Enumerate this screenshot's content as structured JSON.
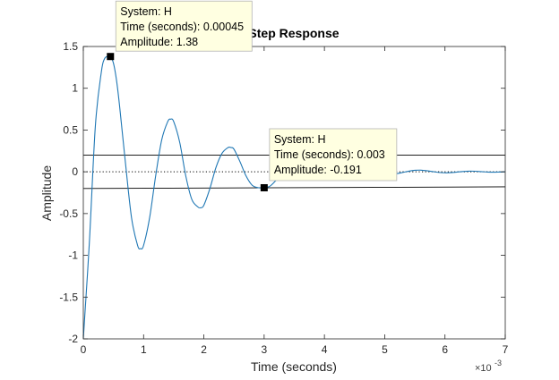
{
  "chart_data": {
    "type": "line",
    "title": "Step Response",
    "xlabel": "Time (seconds)",
    "ylabel": "Amplitude",
    "x_multiplier": "×10",
    "x_multiplier_exponent": "-3",
    "xlim": [
      0,
      0.007
    ],
    "ylim": [
      -2,
      1.5
    ],
    "x_ticks": [
      0,
      0.001,
      0.002,
      0.003,
      0.004,
      0.005,
      0.006,
      0.007
    ],
    "x_tick_labels": [
      "0",
      "1",
      "2",
      "3",
      "4",
      "5",
      "6",
      "7"
    ],
    "y_ticks": [
      -2,
      -1.5,
      -1,
      -0.5,
      0,
      0.5,
      1,
      1.5
    ],
    "y_tick_labels": [
      "-2",
      "-1.5",
      "-1",
      "-0.5",
      "0",
      "0.5",
      "1",
      "1.5"
    ],
    "grid": false,
    "colors": {
      "line": "#1f77b4",
      "tip_bg": "#ffffe1",
      "tip_border": "#b4b4b4",
      "dotted_ref": "#000000"
    },
    "series": [
      {
        "name": "H",
        "x": [
          0,
          0.0001,
          0.0002,
          0.0003,
          0.00035,
          0.0004,
          0.00045,
          0.0005,
          0.00055,
          0.0006,
          0.0007,
          0.0008,
          0.0009,
          0.00095,
          0.001,
          0.0011,
          0.0012,
          0.0013,
          0.0014,
          0.00145,
          0.0015,
          0.0016,
          0.0017,
          0.0018,
          0.0019,
          0.00195,
          0.002,
          0.0021,
          0.0022,
          0.0023,
          0.0024,
          0.00245,
          0.0025,
          0.0026,
          0.0027,
          0.0028,
          0.0029,
          0.003,
          0.0031,
          0.0032,
          0.0033,
          0.0034,
          0.0035,
          0.0036,
          0.0037,
          0.0038,
          0.0039,
          0.004,
          0.0041,
          0.0042,
          0.0043,
          0.0044,
          0.0045,
          0.0046,
          0.0047,
          0.0048,
          0.0049,
          0.005,
          0.0051,
          0.0052,
          0.0053,
          0.0054,
          0.0055,
          0.0056,
          0.0057,
          0.0058,
          0.0059,
          0.006,
          0.0061,
          0.0062,
          0.0063,
          0.0064,
          0.0065,
          0.0066,
          0.0067,
          0.0068,
          0.0069,
          0.007
        ],
        "y": [
          -2.0,
          -0.85,
          0.55,
          1.2,
          1.35,
          1.38,
          1.38,
          1.3,
          1.1,
          0.8,
          0.1,
          -0.55,
          -0.88,
          -0.92,
          -0.88,
          -0.55,
          -0.05,
          0.38,
          0.6,
          0.63,
          0.6,
          0.35,
          -0.05,
          -0.33,
          -0.42,
          -0.43,
          -0.4,
          -0.2,
          0.05,
          0.22,
          0.29,
          0.29,
          0.27,
          0.12,
          -0.05,
          -0.16,
          -0.19,
          -0.191,
          -0.17,
          -0.1,
          -0.02,
          0.05,
          0.09,
          0.1,
          0.085,
          0.04,
          -0.01,
          -0.05,
          -0.065,
          -0.06,
          -0.035,
          0.0,
          0.03,
          0.045,
          0.04,
          0.02,
          -0.005,
          -0.02,
          -0.028,
          -0.022,
          -0.008,
          0.008,
          0.018,
          0.02,
          0.013,
          0.002,
          -0.008,
          -0.012,
          -0.01,
          -0.003,
          0.004,
          0.008,
          0.007,
          0.002,
          -0.003,
          -0.005,
          -0.003,
          0.0
        ]
      }
    ],
    "datatips": [
      {
        "x": 0.00045,
        "y": 1.38,
        "lines": [
          "System: H",
          "Time (seconds): 0.00045",
          "Amplitude: 1.38"
        ]
      },
      {
        "x": 0.003,
        "y": -0.191,
        "lines": [
          "System: H",
          "Time (seconds): 0.003",
          "Amplitude: -0.191"
        ]
      }
    ],
    "envelope_lines": [
      {
        "x": [
          0,
          0.007
        ],
        "y": [
          0.2,
          0.2
        ]
      },
      {
        "x": [
          0,
          0.007
        ],
        "y": [
          -0.2,
          -0.18
        ]
      }
    ],
    "reference_line": {
      "y": 0,
      "style": "dotted"
    }
  }
}
